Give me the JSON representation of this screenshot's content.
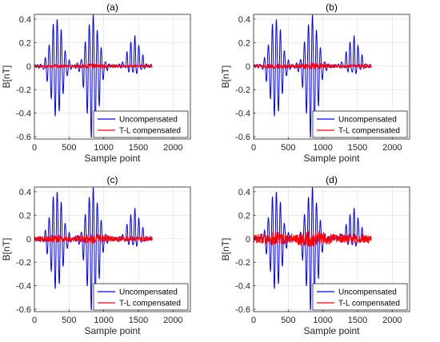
{
  "figure": {
    "ylabel": "B[nT]",
    "xlabel": "Sample point",
    "legend_placement": "bottom-right",
    "grid": true,
    "colors": {
      "uncompensated": "#0000ff",
      "compensated": "#ff0000",
      "axes": "#262626",
      "grid": "#e6e6e6"
    }
  },
  "chart_data": [
    {
      "type": "line",
      "title": "(a)",
      "xlabel": "Sample point",
      "ylabel": "B[nT]",
      "xlim": [
        0,
        2250
      ],
      "ylim": [
        -0.62,
        0.44
      ],
      "xticks": [
        "0",
        "500",
        "1000",
        "1500",
        "2000"
      ],
      "yticks": [
        "-0.6",
        "-0.4",
        "-0.2",
        "0",
        "0.2",
        "0.4"
      ],
      "grid": true,
      "legend": "bottom-right",
      "series": [
        {
          "name": "Uncompensated",
          "color": "#0000ff",
          "x_range": [
            0,
            1700
          ],
          "bursts": [
            {
              "center": 320,
              "peak": 0.41,
              "trough": -0.43
            },
            {
              "center": 840,
              "peak": 0.43,
              "trough": -0.62
            },
            {
              "center": 1440,
              "peak": 0.25,
              "trough": -0.06
            }
          ]
        },
        {
          "name": "T-L compensated",
          "color": "#ff0000",
          "x_range": [
            0,
            1700
          ],
          "amplitude": 0.02
        }
      ]
    },
    {
      "type": "line",
      "title": "(b)",
      "xlabel": "Sample point",
      "ylabel": "B[nT]",
      "xlim": [
        0,
        2250
      ],
      "ylim": [
        -0.62,
        0.44
      ],
      "xticks": [
        "0",
        "500",
        "1000",
        "1500",
        "2000"
      ],
      "yticks": [
        "-0.6",
        "-0.4",
        "-0.2",
        "0",
        "0.2",
        "0.4"
      ],
      "grid": true,
      "legend": "bottom-right",
      "series": [
        {
          "name": "Uncompensated",
          "color": "#0000ff",
          "x_range": [
            0,
            1700
          ],
          "bursts": [
            {
              "center": 320,
              "peak": 0.41,
              "trough": -0.43
            },
            {
              "center": 840,
              "peak": 0.43,
              "trough": -0.62
            },
            {
              "center": 1440,
              "peak": 0.25,
              "trough": -0.06
            }
          ]
        },
        {
          "name": "T-L compensated",
          "color": "#ff0000",
          "x_range": [
            0,
            1700
          ],
          "amplitude": 0.03
        }
      ]
    },
    {
      "type": "line",
      "title": "(c)",
      "xlabel": "Sample point",
      "ylabel": "B[nT]",
      "xlim": [
        0,
        2250
      ],
      "ylim": [
        -0.62,
        0.44
      ],
      "xticks": [
        "0",
        "500",
        "1000",
        "1500",
        "2000"
      ],
      "yticks": [
        "-0.6",
        "-0.4",
        "-0.2",
        "0",
        "0.2",
        "0.4"
      ],
      "grid": true,
      "legend": "bottom-right",
      "series": [
        {
          "name": "Uncompensated",
          "color": "#0000ff",
          "x_range": [
            0,
            1700
          ],
          "bursts": [
            {
              "center": 320,
              "peak": 0.41,
              "trough": -0.43
            },
            {
              "center": 840,
              "peak": 0.43,
              "trough": -0.62
            },
            {
              "center": 1440,
              "peak": 0.25,
              "trough": -0.06
            }
          ]
        },
        {
          "name": "T-L compensated",
          "color": "#ff0000",
          "x_range": [
            0,
            1700
          ],
          "amplitude": 0.045
        }
      ]
    },
    {
      "type": "line",
      "title": "(d)",
      "xlabel": "Sample point",
      "ylabel": "B[nT]",
      "xlim": [
        0,
        2250
      ],
      "ylim": [
        -0.62,
        0.44
      ],
      "xticks": [
        "0",
        "500",
        "1000",
        "1500",
        "2000"
      ],
      "yticks": [
        "-0.6",
        "-0.4",
        "-0.2",
        "0",
        "0.2",
        "0.4"
      ],
      "grid": true,
      "legend": "bottom-right",
      "series": [
        {
          "name": "Uncompensated",
          "color": "#0000ff",
          "x_range": [
            0,
            1700
          ],
          "bursts": [
            {
              "center": 320,
              "peak": 0.41,
              "trough": -0.43
            },
            {
              "center": 840,
              "peak": 0.43,
              "trough": -0.62
            },
            {
              "center": 1440,
              "peak": 0.25,
              "trough": -0.06
            }
          ]
        },
        {
          "name": "T-L compensated",
          "color": "#ff0000",
          "x_range": [
            0,
            1700
          ],
          "amplitude": 0.08
        }
      ]
    }
  ]
}
